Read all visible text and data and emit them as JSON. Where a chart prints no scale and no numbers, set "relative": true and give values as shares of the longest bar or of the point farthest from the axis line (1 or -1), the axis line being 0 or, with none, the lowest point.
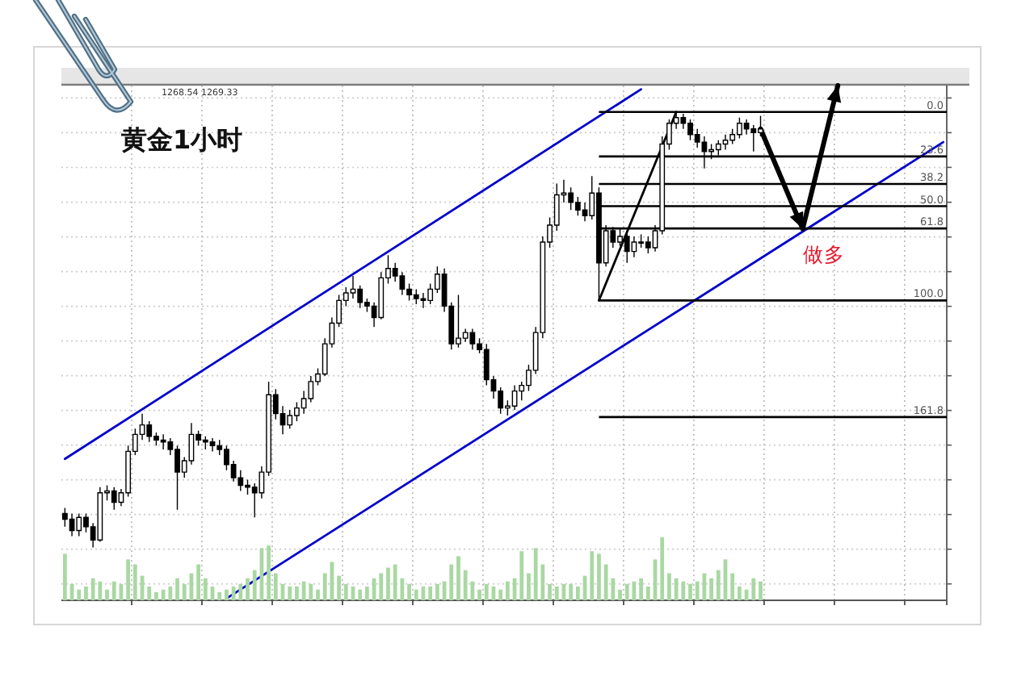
{
  "chart_data": [
    {
      "type": "candlestick",
      "title": "黄金1小时",
      "categories": [
        null,
        null,
        null,
        null,
        null,
        null,
        null,
        null,
        null,
        null,
        null,
        null,
        null,
        null,
        null,
        null,
        null,
        null,
        null,
        null,
        null,
        null,
        null,
        null,
        null,
        null,
        null,
        null,
        null,
        null,
        null,
        null,
        null,
        null,
        null,
        null,
        null,
        null,
        null,
        null,
        null,
        null,
        null,
        null,
        null,
        null,
        null,
        null,
        null,
        null,
        null,
        null,
        null,
        null,
        null,
        null,
        null,
        null,
        null,
        null,
        null,
        null,
        null,
        null,
        null,
        null,
        null,
        null,
        null,
        null,
        null,
        null,
        null,
        null,
        null,
        null,
        null,
        null,
        null,
        null,
        null,
        null,
        null,
        null,
        null,
        null,
        null,
        null,
        null,
        null,
        null,
        null,
        null,
        null,
        null,
        null,
        null,
        null,
        null,
        null,
        null,
        null,
        null,
        null,
        null,
        null,
        null,
        null,
        null,
        null,
        null,
        null,
        null,
        null,
        null,
        null,
        null,
        null,
        null,
        null,
        null,
        null,
        null,
        null,
        null,
        null
      ],
      "ohlc": [
        [
          213,
          220,
          210,
          216
        ],
        [
          216,
          225,
          213,
          222
        ],
        [
          222,
          225,
          213,
          215
        ],
        [
          215,
          223,
          213,
          220
        ],
        [
          220,
          231,
          218,
          227
        ],
        [
          227,
          228,
          199,
          202
        ],
        [
          202,
          206,
          198,
          201
        ],
        [
          201,
          211,
          199,
          207
        ],
        [
          207,
          209,
          200,
          202
        ],
        [
          202,
          204,
          177,
          180
        ],
        [
          180,
          182,
          168,
          171
        ],
        [
          171,
          174,
          160,
          166
        ],
        [
          166,
          175,
          164,
          172
        ],
        [
          172,
          177,
          170,
          174
        ],
        [
          174,
          179,
          171,
          175
        ],
        [
          175,
          182,
          173,
          179
        ],
        [
          179,
          211,
          177,
          191
        ],
        [
          191,
          194,
          183,
          185
        ],
        [
          185,
          187,
          165,
          171
        ],
        [
          171,
          177,
          169,
          174
        ],
        [
          174,
          179,
          172,
          175
        ],
        [
          175,
          180,
          173,
          177
        ],
        [
          177,
          182,
          174,
          179
        ],
        [
          179,
          190,
          177,
          187
        ],
        [
          187,
          196,
          185,
          194
        ],
        [
          194,
          201,
          190,
          198
        ],
        [
          198,
          203,
          195,
          199
        ],
        [
          199,
          215,
          197,
          202
        ],
        [
          202,
          205,
          188,
          191
        ],
        [
          191,
          193,
          143,
          150
        ],
        [
          150,
          163,
          147,
          160
        ],
        [
          160,
          171,
          156,
          166
        ],
        [
          166,
          168,
          158,
          161
        ],
        [
          161,
          164,
          154,
          157
        ],
        [
          157,
          160,
          148,
          152
        ],
        [
          152,
          154,
          140,
          143
        ],
        [
          143,
          145,
          136,
          139
        ],
        [
          139,
          140,
          120,
          123
        ],
        [
          123,
          125,
          109,
          112
        ],
        [
          112,
          114,
          97,
          100
        ],
        [
          100,
          103,
          93,
          96
        ],
        [
          96,
          99,
          87,
          94
        ],
        [
          94,
          104,
          92,
          101
        ],
        [
          101,
          106,
          99,
          103
        ],
        [
          103,
          114,
          101,
          109
        ],
        [
          109,
          110,
          85,
          88
        ],
        [
          88,
          91,
          76,
          83
        ],
        [
          83,
          90,
          80,
          87
        ],
        [
          87,
          97,
          85,
          94
        ],
        [
          94,
          100,
          91,
          97
        ],
        [
          97,
          102,
          94,
          99
        ],
        [
          99,
          104,
          96,
          100
        ],
        [
          100,
          102,
          91,
          94
        ],
        [
          94,
          96,
          82,
          86
        ],
        [
          86,
          106,
          83,
          103
        ],
        [
          103,
          126,
          101,
          123
        ],
        [
          123,
          125,
          97,
          120
        ],
        [
          120,
          122,
          115,
          117
        ],
        [
          117,
          126,
          115,
          123
        ],
        [
          123,
          128,
          120,
          126
        ],
        [
          126,
          145,
          123,
          142
        ],
        [
          142,
          152,
          140,
          148
        ],
        [
          148,
          160,
          146,
          157
        ],
        [
          157,
          161,
          153,
          156
        ],
        [
          156,
          158,
          145,
          148
        ],
        [
          148,
          153,
          143,
          145
        ],
        [
          145,
          148,
          134,
          137
        ],
        [
          137,
          139,
          114,
          117
        ],
        [
          117,
          120,
          66,
          69
        ],
        [
          69,
          72,
          56,
          60
        ],
        [
          60,
          63,
          38,
          44
        ],
        [
          44,
          48,
          36,
          43
        ],
        [
          43,
          52,
          40,
          48
        ],
        [
          48,
          55,
          45,
          52
        ],
        [
          52,
          58,
          48,
          55
        ],
        [
          55,
          57,
          34,
          43
        ],
        [
          43,
          100,
          40,
          80
        ],
        [
          80,
          82,
          60,
          63
        ],
        [
          63,
          72,
          61,
          69
        ],
        [
          69,
          71,
          62,
          66
        ],
        [
          66,
          80,
          63,
          74
        ],
        [
          74,
          77,
          66,
          69
        ],
        [
          69,
          72,
          65,
          69
        ],
        [
          69,
          75,
          66,
          72
        ],
        [
          72,
          74,
          60,
          63
        ],
        [
          63,
          65,
          13,
          17
        ],
        [
          17,
          20,
          4,
          6
        ],
        [
          6,
          9,
          0,
          3
        ],
        [
          3,
          9,
          1,
          6
        ],
        [
          6,
          15,
          4,
          12
        ],
        [
          12,
          19,
          9,
          16
        ],
        [
          16,
          30,
          13,
          21
        ],
        [
          21,
          25,
          17,
          20
        ],
        [
          20,
          23,
          15,
          17
        ],
        [
          17,
          20,
          12,
          15
        ],
        [
          15,
          17,
          9,
          12
        ],
        [
          12,
          14,
          3,
          6
        ],
        [
          6,
          12,
          4,
          9
        ],
        [
          9,
          21,
          7,
          11
        ],
        [
          11,
          13,
          2,
          9
        ],
        null,
        null,
        null,
        null,
        null,
        null,
        null,
        null,
        null,
        null,
        null,
        null,
        null,
        null,
        null,
        null,
        null,
        null,
        null,
        null,
        null,
        null,
        null,
        null,
        null,
        null
      ],
      "color": "#000000",
      "series": [
        {
          "type": "line",
          "color": "#000000",
          "values": [
            null,
            null,
            null,
            null,
            null,
            null,
            null,
            null,
            null,
            null,
            null,
            null,
            null,
            null,
            null,
            null,
            null,
            null,
            null,
            null,
            null,
            null,
            null,
            null,
            null,
            null,
            null,
            null,
            null,
            null,
            null,
            null,
            null,
            null,
            null,
            null,
            null,
            null,
            null,
            null,
            null,
            null,
            null,
            null,
            null,
            null,
            null,
            null,
            null,
            null,
            null,
            null,
            null,
            null,
            null,
            null,
            null,
            null,
            null,
            null,
            null,
            null,
            null,
            null,
            null,
            null,
            null,
            null,
            null,
            null,
            null,
            null,
            null,
            null,
            null,
            null,
            100,
            null,
            null,
            null,
            null,
            null,
            null,
            null,
            null,
            null,
            null,
            0,
            null,
            null,
            null,
            null,
            null,
            null,
            null,
            null,
            null,
            null,
            null,
            null,
            null,
            null,
            null,
            null,
            null,
            null,
            null,
            null,
            null,
            null,
            null,
            null,
            null,
            null,
            null,
            null,
            null,
            null,
            null,
            null,
            null,
            null,
            null,
            null,
            null,
            null
          ]
        },
        {
          "type": "line",
          "color": "#0000cc",
          "values": [
            184,
            null,
            null,
            null,
            null,
            null,
            null,
            null,
            null,
            null,
            null,
            null,
            null,
            null,
            null,
            null,
            null,
            null,
            null,
            null,
            null,
            null,
            null,
            null,
            null,
            null,
            null,
            null,
            null,
            null,
            null,
            null,
            null,
            null,
            null,
            null,
            null,
            null,
            null,
            null,
            null,
            null,
            null,
            null,
            null,
            null,
            null,
            null,
            null,
            null,
            null,
            null,
            null,
            null,
            null,
            null,
            null,
            null,
            null,
            null,
            null,
            null,
            null,
            null,
            null,
            null,
            null,
            null,
            null,
            null,
            null,
            null,
            null,
            null,
            null,
            null,
            null,
            null,
            null,
            null,
            null,
            null,
            -12,
            null,
            null,
            null,
            null,
            null,
            null,
            null,
            null,
            null,
            null,
            null,
            null,
            null,
            null,
            null,
            null,
            null,
            null,
            null,
            null,
            null,
            null,
            null,
            null,
            null,
            null,
            null,
            null,
            null,
            null,
            null,
            null,
            null,
            null,
            null,
            null,
            null,
            null,
            null,
            null,
            null,
            null,
            null
          ]
        },
        {
          "type": "line",
          "color": "#0000cc",
          "values": [
            null,
            null,
            null,
            null,
            null,
            null,
            null,
            null,
            null,
            null,
            null,
            null,
            null,
            null,
            null,
            null,
            null,
            null,
            null,
            null,
            null,
            null,
            null,
            258,
            null,
            null,
            null,
            null,
            null,
            null,
            null,
            null,
            null,
            null,
            null,
            null,
            null,
            null,
            null,
            null,
            null,
            null,
            null,
            null,
            null,
            null,
            null,
            null,
            null,
            null,
            null,
            null,
            null,
            null,
            null,
            null,
            null,
            null,
            null,
            null,
            null,
            null,
            null,
            null,
            null,
            null,
            null,
            null,
            null,
            null,
            null,
            null,
            null,
            null,
            null,
            null,
            null,
            null,
            null,
            null,
            null,
            null,
            null,
            null,
            null,
            null,
            null,
            null,
            null,
            null,
            null,
            null,
            null,
            null,
            null,
            null,
            null,
            null,
            null,
            null,
            null,
            null,
            null,
            null,
            null,
            null,
            null,
            null,
            null,
            null,
            null,
            null,
            null,
            null,
            null,
            null,
            null,
            null,
            null,
            null,
            null,
            null,
            null,
            null,
            null,
            16
          ]
        },
        {
          "type": "line",
          "color": "#000000",
          "values": [
            null,
            null,
            null,
            null,
            null,
            null,
            null,
            null,
            null,
            null,
            null,
            null,
            null,
            null,
            null,
            null,
            null,
            null,
            null,
            null,
            null,
            null,
            null,
            null,
            null,
            null,
            null,
            null,
            null,
            null,
            null,
            null,
            null,
            null,
            null,
            null,
            null,
            null,
            null,
            null,
            null,
            null,
            null,
            null,
            null,
            null,
            null,
            null,
            null,
            null,
            null,
            null,
            null,
            null,
            null,
            null,
            null,
            null,
            null,
            null,
            null,
            null,
            null,
            null,
            null,
            null,
            null,
            null,
            null,
            null,
            null,
            null,
            null,
            null,
            null,
            null,
            null,
            null,
            null,
            null,
            null,
            null,
            null,
            null,
            null,
            null,
            null,
            null,
            null,
            null,
            null,
            null,
            null,
            null,
            null,
            null,
            null,
            null,
            null,
            9,
            null,
            null,
            null,
            null,
            null,
            62,
            null,
            null,
            null,
            null,
            -14,
            null,
            null,
            null,
            null,
            null,
            null,
            null,
            null,
            null,
            null,
            null,
            null,
            null,
            null,
            null
          ]
        }
      ],
      "ylim": [
        259,
        -14
      ],
      "yticks": [
        {
          "value": -7.4,
          "label": null
        },
        {
          "value": 11.0,
          "label": null
        },
        {
          "value": 29.4,
          "label": null
        },
        {
          "value": 47.9,
          "label": null
        },
        {
          "value": 66.3,
          "label": null
        },
        {
          "value": 84.7,
          "label": null
        },
        {
          "value": 103.1,
          "label": null
        },
        {
          "value": 121.5,
          "label": null
        },
        {
          "value": 139.9,
          "label": null
        },
        {
          "value": 158.3,
          "label": null
        },
        {
          "value": 176.7,
          "label": null
        },
        {
          "value": 195.1,
          "label": null
        },
        {
          "value": 213.5,
          "label": null
        },
        {
          "value": 231.9,
          "label": null
        },
        {
          "value": 250.3,
          "label": null
        }
      ],
      "grid": true,
      "ref_lines": [
        {
          "axis": "y",
          "value": 0,
          "label": "0.0",
          "color": "#000000"
        },
        {
          "axis": "y",
          "value": 23.6,
          "label": "23.6",
          "color": "#000000"
        },
        {
          "axis": "y",
          "value": 38.2,
          "label": "38.2",
          "color": "#000000"
        },
        {
          "axis": "y",
          "value": 50,
          "label": "50.0",
          "color": "#000000"
        },
        {
          "axis": "y",
          "value": 61.8,
          "label": "61.8",
          "color": "#000000"
        },
        {
          "axis": "y",
          "value": 100,
          "label": "100.0",
          "color": "#000000"
        },
        {
          "axis": "y",
          "value": 161.8,
          "label": "161.8",
          "color": "#000000"
        }
      ],
      "annotations": [
        "1268.54 1269.33",
        "做多"
      ]
    },
    {
      "type": "bar",
      "categories": [
        null,
        null,
        null,
        null,
        null,
        null,
        null,
        null,
        null,
        null,
        null,
        null,
        null,
        null,
        null,
        null,
        null,
        null,
        null,
        null,
        null,
        null,
        null,
        null,
        null,
        null,
        null,
        null,
        null,
        null,
        null,
        null,
        null,
        null,
        null,
        null,
        null,
        null,
        null,
        null,
        null,
        null,
        null,
        null,
        null,
        null,
        null,
        null,
        null,
        null,
        null,
        null,
        null,
        null,
        null,
        null,
        null,
        null,
        null,
        null,
        null,
        null,
        null,
        null,
        null,
        null,
        null,
        null,
        null,
        null,
        null,
        null,
        null,
        null,
        null,
        null,
        null,
        null,
        null,
        null,
        null,
        null,
        null,
        null,
        null,
        null,
        null,
        null,
        null,
        null,
        null,
        null,
        null,
        null,
        null,
        null,
        null,
        null,
        null,
        null,
        null,
        null,
        null,
        null,
        null,
        null,
        null,
        null,
        null,
        null,
        null,
        null,
        null,
        null,
        null,
        null,
        null,
        null,
        null,
        null,
        null,
        null,
        null,
        null,
        null,
        null
      ],
      "values": [
        0.74,
        0.26,
        0.17,
        0.22,
        0.35,
        0.3,
        0.17,
        0.3,
        0.26,
        0.65,
        0.57,
        0.39,
        0.22,
        0.13,
        0.17,
        0.22,
        0.35,
        0.26,
        0.43,
        0.57,
        0.35,
        0.22,
        0.13,
        0.17,
        0.22,
        0.26,
        0.35,
        0.48,
        0.83,
        0.87,
        0.43,
        0.26,
        0.22,
        0.22,
        0.3,
        0.26,
        0.17,
        0.43,
        0.61,
        0.39,
        0.26,
        0.22,
        0.17,
        0.22,
        0.35,
        0.43,
        0.52,
        0.57,
        0.35,
        0.26,
        0.17,
        0.22,
        0.22,
        0.26,
        0.3,
        0.57,
        0.7,
        0.48,
        0.3,
        0.17,
        0.26,
        0.22,
        0.17,
        0.3,
        0.35,
        0.78,
        0.43,
        0.83,
        0.57,
        0.26,
        0.22,
        0.26,
        0.26,
        0.22,
        0.39,
        0.78,
        0.74,
        0.57,
        0.35,
        0.17,
        0.26,
        0.3,
        0.35,
        0.22,
        0.65,
        1,
        0.43,
        0.35,
        0.3,
        0.26,
        0.3,
        0.43,
        0.35,
        0.48,
        0.65,
        0.43,
        0.22,
        0.17,
        0.35,
        0.3,
        null,
        null,
        null,
        null,
        null,
        null,
        null,
        null,
        null,
        null,
        null,
        null,
        null,
        null,
        null,
        null,
        null,
        null,
        null,
        null,
        null,
        null,
        null,
        null,
        null,
        null
      ],
      "color": "#a9d8a2",
      "relative": true
    }
  ]
}
